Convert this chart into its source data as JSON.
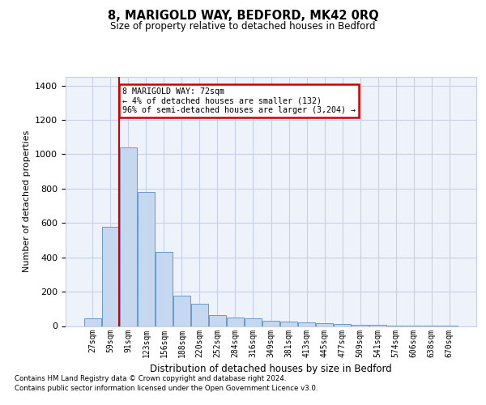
{
  "title": "8, MARIGOLD WAY, BEDFORD, MK42 0RQ",
  "subtitle": "Size of property relative to detached houses in Bedford",
  "xlabel": "Distribution of detached houses by size in Bedford",
  "ylabel": "Number of detached properties",
  "categories": [
    "27sqm",
    "59sqm",
    "91sqm",
    "123sqm",
    "156sqm",
    "188sqm",
    "220sqm",
    "252sqm",
    "284sqm",
    "316sqm",
    "349sqm",
    "381sqm",
    "413sqm",
    "445sqm",
    "477sqm",
    "509sqm",
    "541sqm",
    "574sqm",
    "606sqm",
    "638sqm",
    "670sqm"
  ],
  "values": [
    45,
    578,
    1042,
    782,
    430,
    178,
    128,
    63,
    50,
    45,
    30,
    27,
    20,
    15,
    12,
    8,
    5,
    3,
    2,
    1,
    1
  ],
  "bar_color": "#c5d8f0",
  "bar_edge_color": "#6699cc",
  "red_line_x": 1.5,
  "annotation_text": "8 MARIGOLD WAY: 72sqm\n← 4% of detached houses are smaller (132)\n96% of semi-detached houses are larger (3,204) →",
  "annotation_box_color": "#ffffff",
  "annotation_box_edge": "#cc0000",
  "red_line_color": "#cc0000",
  "ylim": [
    0,
    1450
  ],
  "yticks": [
    0,
    200,
    400,
    600,
    800,
    1000,
    1200,
    1400
  ],
  "footer_line1": "Contains HM Land Registry data © Crown copyright and database right 2024.",
  "footer_line2": "Contains public sector information licensed under the Open Government Licence v3.0.",
  "bg_color": "#eef2fb",
  "grid_color": "#c8cfe8"
}
